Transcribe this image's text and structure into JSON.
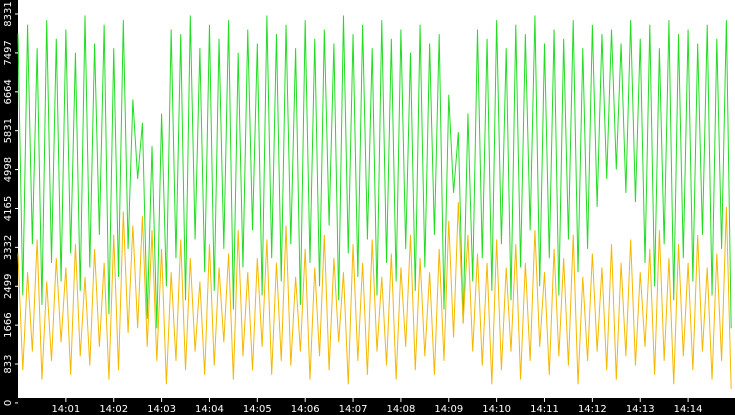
{
  "chart_data": {
    "type": "line",
    "x": [
      0,
      0.1,
      0.2,
      0.3,
      0.4,
      0.5,
      0.6,
      0.7,
      0.8,
      0.9,
      1,
      1.1,
      1.2,
      1.3,
      1.4,
      1.5,
      1.6,
      1.7,
      1.8,
      1.9,
      2,
      2.1,
      2.2,
      2.3,
      2.4,
      2.5,
      2.6,
      2.7,
      2.8,
      2.9,
      3,
      3.1,
      3.2,
      3.3,
      3.4,
      3.5,
      3.6,
      3.7,
      3.8,
      3.9,
      4,
      4.1,
      4.2,
      4.3,
      4.4,
      4.5,
      4.6,
      4.7,
      4.8,
      4.9,
      5,
      5.1,
      5.2,
      5.3,
      5.4,
      5.5,
      5.6,
      5.7,
      5.8,
      5.9,
      6,
      6.1,
      6.2,
      6.3,
      6.4,
      6.5,
      6.6,
      6.7,
      6.8,
      6.9,
      7,
      7.1,
      7.2,
      7.3,
      7.4,
      7.5,
      7.6,
      7.7,
      7.8,
      7.9,
      8,
      8.1,
      8.2,
      8.3,
      8.4,
      8.5,
      8.6,
      8.7,
      8.8,
      8.9,
      9,
      9.1,
      9.2,
      9.3,
      9.4,
      9.5,
      9.6,
      9.7,
      9.8,
      9.9,
      10,
      10.1,
      10.2,
      10.3,
      10.4,
      10.5,
      10.6,
      10.7,
      10.8,
      10.9,
      11,
      11.1,
      11.2,
      11.3,
      11.4,
      11.5,
      11.6,
      11.7,
      11.8,
      11.9,
      12,
      12.1,
      12.2,
      12.3,
      12.4,
      12.5,
      12.6,
      12.7,
      12.8,
      12.9,
      13,
      13.1,
      13.2,
      13.3,
      13.4,
      13.5,
      13.6,
      13.7,
      13.8,
      13.9,
      14,
      14.1,
      14.2,
      14.3,
      14.4,
      14.5,
      14.6,
      14.7,
      14.8,
      14.9
    ],
    "series": [
      {
        "color": "#22dd22",
        "values": [
          7900,
          2300,
          8100,
          3400,
          7600,
          2100,
          8200,
          3000,
          7800,
          2600,
          8000,
          3200,
          7500,
          2400,
          8300,
          2900,
          7700,
          3600,
          8100,
          1900,
          7600,
          2700,
          8200,
          3300,
          6500,
          4800,
          6000,
          1800,
          5500,
          1600,
          6200,
          2500,
          8000,
          3100,
          7900,
          2200,
          8300,
          3500,
          7600,
          2800,
          8100,
          2400,
          7800,
          3300,
          8200,
          2000,
          7500,
          2900,
          8000,
          3700,
          7700,
          2300,
          8300,
          3100,
          7900,
          2600,
          8100,
          3400,
          7600,
          2100,
          8200,
          3000,
          7800,
          2500,
          8000,
          3800,
          7700,
          2200,
          8300,
          3200,
          7900,
          2700,
          8100,
          3500,
          7600,
          2300,
          8200,
          3000,
          7800,
          2600,
          8000,
          3300,
          7500,
          2400,
          8100,
          2900,
          7700,
          3600,
          7900,
          2000,
          6600,
          4500,
          5800,
          1700,
          6200,
          2600,
          8000,
          3100,
          7800,
          2400,
          8200,
          3400,
          7600,
          2200,
          8100,
          2900,
          7900,
          3700,
          8300,
          2500,
          7700,
          3100,
          8000,
          2300,
          7800,
          3500,
          8200,
          2800,
          7600,
          3300,
          8100,
          4200,
          7900,
          4800,
          8000,
          5000,
          7700,
          4500,
          8200,
          4300,
          7800,
          3000,
          8100,
          2500,
          7600,
          3400,
          8200,
          2200,
          7900,
          3100,
          8000,
          2600,
          7700,
          3600,
          8100,
          2300,
          7800,
          3300,
          8200,
          1600
        ]
      },
      {
        "color": "#f5b800",
        "values": [
          3200,
          700,
          2800,
          1100,
          3500,
          500,
          2600,
          900,
          3100,
          1300,
          2900,
          600,
          3400,
          1000,
          2700,
          800,
          3300,
          1200,
          3000,
          500,
          3600,
          700,
          4100,
          1500,
          3800,
          1600,
          4000,
          1200,
          3700,
          900,
          3300,
          400,
          2800,
          900,
          3500,
          700,
          3100,
          1100,
          2600,
          600,
          3400,
          800,
          2900,
          1300,
          3200,
          500,
          3700,
          1000,
          2800,
          700,
          3100,
          1200,
          3500,
          600,
          3000,
          900,
          3800,
          800,
          2700,
          1100,
          3300,
          500,
          2900,
          1000,
          3600,
          700,
          3100,
          1300,
          2800,
          400,
          3400,
          900,
          3000,
          600,
          3500,
          1100,
          2700,
          800,
          3200,
          500,
          2900,
          1200,
          3600,
          700,
          3100,
          1000,
          2800,
          600,
          3300,
          900,
          3900,
          1400,
          4300,
          1700,
          3600,
          1100,
          3200,
          800,
          3000,
          400,
          3500,
          700,
          2900,
          1100,
          3400,
          500,
          3000,
          900,
          3700,
          1200,
          2800,
          600,
          3300,
          1000,
          3100,
          800,
          3600,
          400,
          2700,
          900,
          3200,
          1100,
          2900,
          700,
          3400,
          500,
          3000,
          1000,
          3500,
          800,
          2800,
          1200,
          3300,
          600,
          3700,
          900,
          3100,
          400,
          3400,
          1000,
          3000,
          700,
          3600,
          1100,
          2900,
          500,
          3200,
          900,
          4200,
          300
        ]
      }
    ],
    "xlim": [
      0,
      14.98
    ],
    "xticks": [
      {
        "value": 1,
        "label": "14:01"
      },
      {
        "value": 2,
        "label": "14:02"
      },
      {
        "value": 3,
        "label": "14:03"
      },
      {
        "value": 4,
        "label": "14:04"
      },
      {
        "value": 5,
        "label": "14:05"
      },
      {
        "value": 6,
        "label": "14:06"
      },
      {
        "value": 7,
        "label": "14:07"
      },
      {
        "value": 8,
        "label": "14:08"
      },
      {
        "value": 9,
        "label": "14:09"
      },
      {
        "value": 10,
        "label": "14:10"
      },
      {
        "value": 11,
        "label": "14:11"
      },
      {
        "value": 12,
        "label": "14:12"
      },
      {
        "value": 13,
        "label": "14:13"
      },
      {
        "value": 14,
        "label": "14:14"
      }
    ],
    "ylim": [
      105,
      8631
    ],
    "yticks": [
      0,
      833,
      1666,
      2499,
      3332,
      4165,
      4998,
      5831,
      6664,
      7497,
      8331
    ],
    "grid": false
  }
}
